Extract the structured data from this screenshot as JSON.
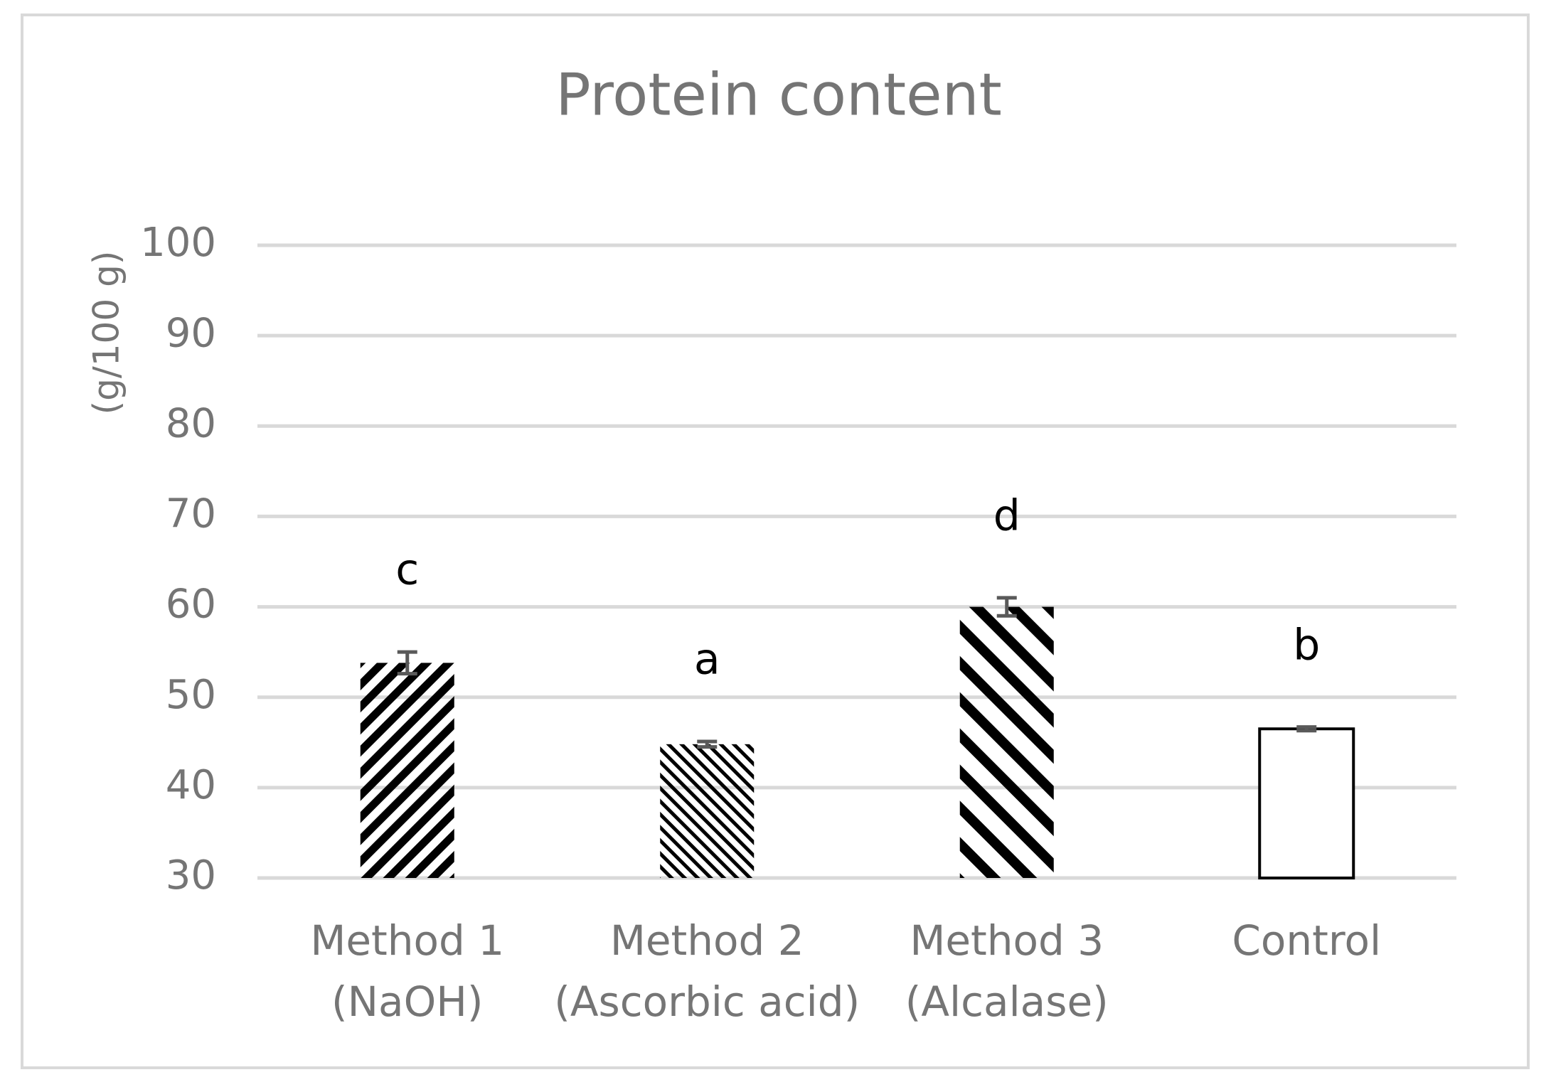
{
  "chart_data": {
    "type": "bar",
    "title": "Protein content",
    "y_label": "(g/100 g)",
    "categories": [
      "Method 1\n(NaOH)",
      "Method 2\n(Ascorbic acid)",
      "Method 3\n(Alcalase)",
      "Control"
    ],
    "values": [
      53.8,
      44.8,
      60.0,
      46.5
    ],
    "errors": [
      1.2,
      0.3,
      1.0,
      0.2
    ],
    "annotations": [
      "c",
      "a",
      "d",
      "b"
    ],
    "color": "#000000",
    "ylim": [
      30,
      100
    ],
    "yticks": [
      30,
      40,
      50,
      60,
      70,
      80,
      90,
      100
    ],
    "grid": true
  }
}
